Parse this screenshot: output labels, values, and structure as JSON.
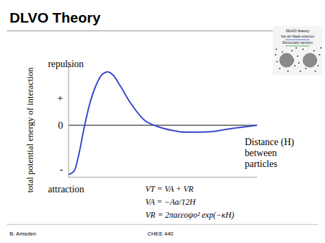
{
  "chart_data": {
    "type": "line",
    "title": "DLVO Theory",
    "y_label": "total potential energy of interaction",
    "x_label": [
      "Distance (H)",
      "between",
      "particles"
    ],
    "annotations": [
      "repulsion",
      "attraction"
    ],
    "equations": [
      "VT = VA + VR",
      "VA = −Aa/12H",
      "VR = 2πaεεoψo² exp(−κH)"
    ],
    "x": [
      0,
      0.29,
      0.55,
      0.8,
      1.09,
      1.45,
      1.82,
      2.07,
      2.36,
      2.73,
      3.27,
      4.0,
      4.73,
      5.45,
      6.18,
      6.91,
      7.64,
      8.36,
      9.09,
      10
    ],
    "values": [
      -1.8,
      -1.68,
      -1.05,
      -0.18,
      0.7,
      1.45,
      1.88,
      1.95,
      1.83,
      1.45,
      0.83,
      0.2,
      -0.05,
      -0.18,
      -0.25,
      -0.25,
      -0.23,
      -0.15,
      -0.08,
      0
    ],
    "color": "#3344cc",
    "marker": "none",
    "xlim": [
      0,
      10
    ],
    "xticks": [],
    "ylim": [
      -1.9,
      2.2
    ],
    "yticks": [
      {
        "value": 1,
        "label": "+"
      },
      0,
      {
        "value": -1.6,
        "label": "-"
      }
    ],
    "tick_labels": "y"
  },
  "footer": [
    "B. Amsden",
    "CHEE 440"
  ],
  "inset": {
    "title": "DLVO theory",
    "labels": [
      "Van der Waals attraction",
      "Electrostatic repulsion"
    ]
  }
}
